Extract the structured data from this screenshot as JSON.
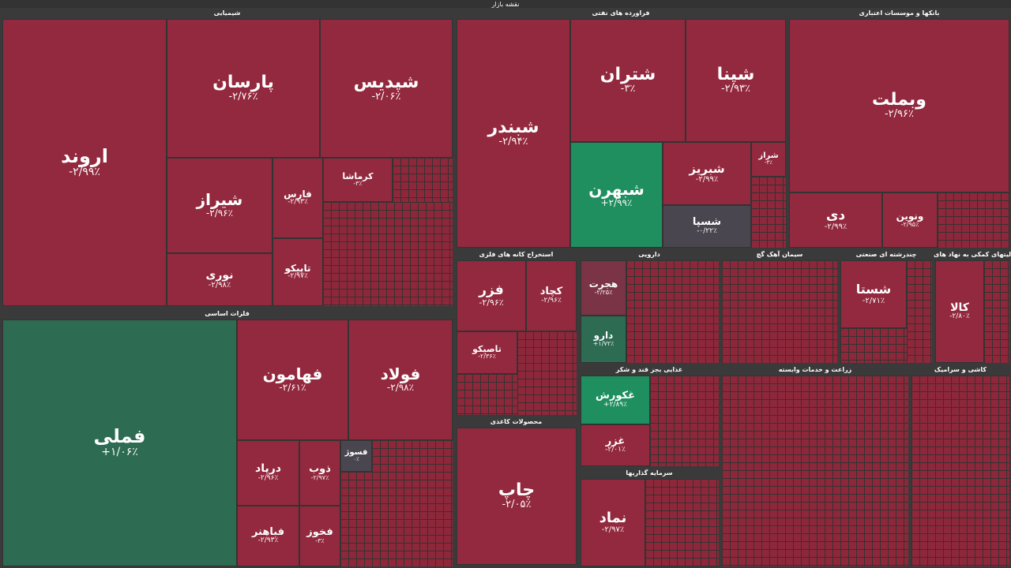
{
  "page": {
    "title": "نقشه بازار"
  },
  "sectors": {
    "chemical": "شیمیایی",
    "refinery": "فراورده های نفتی",
    "banks": "بانکها و موسسات اعتباری",
    "metals": "فلزات اساسی",
    "mining": "استخراج کانه های فلزی",
    "pharma": "دارویی",
    "cement": "سیمان آهک گچ",
    "multi": "چندرشته ای صنعتی",
    "holding": "فعالیتهای کمکی به نهاد های",
    "food": "غذایی بجز قند و شکر",
    "paper": "محصولات کاغذی",
    "investment": "سرمایه گذاریها",
    "agri": "زراعت و خدمات وابسته",
    "ceramic": "کاشی و سرامیک"
  },
  "tiles": {
    "arvand": {
      "name": "اروند",
      "pct": "-۲/۹۹٪"
    },
    "parsan": {
      "name": "پارسان",
      "pct": "-۲/۷۶٪"
    },
    "shepdis": {
      "name": "شپدیس",
      "pct": "-۲/۰۶٪"
    },
    "shiraz": {
      "name": "شیراز",
      "pct": "-۲/۹۶٪"
    },
    "noori": {
      "name": "نوری",
      "pct": "-۲/۹۸٪"
    },
    "fars": {
      "name": "فارس",
      "pct": "-۲/۹۳٪"
    },
    "tapico": {
      "name": "تاپیکو",
      "pct": "-۲/۹۷٪"
    },
    "kermasha": {
      "name": "کرماشا",
      "pct": "-۳٪"
    },
    "shabandar": {
      "name": "شبندر",
      "pct": "-۲/۹۴٪"
    },
    "shetran": {
      "name": "شتران",
      "pct": "-۳٪"
    },
    "shepna": {
      "name": "شپنا",
      "pct": "-۲/۹۳٪"
    },
    "shebehran": {
      "name": "شبهرن",
      "pct": "+۲/۹۹٪"
    },
    "shebriz": {
      "name": "شبریز",
      "pct": "-۲/۹۹٪"
    },
    "sheraz": {
      "name": "شراز",
      "pct": "-۳٪"
    },
    "shespa": {
      "name": "شسپا",
      "pct": "-۰/۲۲٪"
    },
    "vebmelat": {
      "name": "وبملت",
      "pct": "-۲/۹۶٪"
    },
    "dey": {
      "name": "دی",
      "pct": "-۲/۹۹٪"
    },
    "vanovin": {
      "name": "ونوین",
      "pct": "-۲/۹۵٪"
    },
    "famli": {
      "name": "فملی",
      "pct": "+۱/۰۶٪"
    },
    "fahamoon": {
      "name": "فهامون",
      "pct": "-۲/۶۱٪"
    },
    "foolad": {
      "name": "فولاد",
      "pct": "-۲/۹۸٪"
    },
    "dariyad": {
      "name": "درپاد",
      "pct": "-۲/۹۶٪"
    },
    "fabahnar": {
      "name": "فباهنر",
      "pct": "-۲/۹۳٪"
    },
    "zob": {
      "name": "ذوب",
      "pct": "-۲/۹۷٪"
    },
    "fakhooz": {
      "name": "فخوز",
      "pct": "-۳٪"
    },
    "fesooz": {
      "name": "فسوژ",
      "pct": "۰٪"
    },
    "fazar": {
      "name": "فزر",
      "pct": "-۲/۹۶٪"
    },
    "kechad": {
      "name": "کچاد",
      "pct": "-۲/۹۶٪"
    },
    "tasico": {
      "name": "تاصیکو",
      "pct": "-۲/۳۶٪"
    },
    "hojrat": {
      "name": "هجرت",
      "pct": "-۲/۲۵٪"
    },
    "daroo": {
      "name": "دارو",
      "pct": "+۱/۷۲٪"
    },
    "chap": {
      "name": "چاپ",
      "pct": "-۲/۰۵٪"
    },
    "ghakoorosh": {
      "name": "غکورش",
      "pct": "+۲/۸۹٪"
    },
    "ghazar": {
      "name": "غزر",
      "pct": "-۲/۰۱٪"
    },
    "nemad": {
      "name": "نماد",
      "pct": "-۲/۹۷٪"
    },
    "shasta": {
      "name": "شستا",
      "pct": "-۲/۷۱٪"
    },
    "kala": {
      "name": "کالا",
      "pct": "-۲/۸۰٪"
    }
  }
}
